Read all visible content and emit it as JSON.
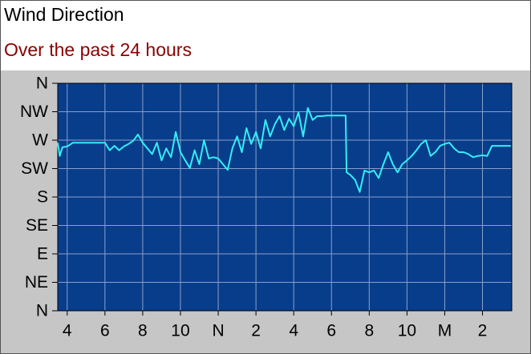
{
  "chart_data": {
    "type": "line",
    "title": "Wind Direction",
    "subtitle": "Over the past 24 hours",
    "x": [
      3.5,
      3.6,
      3.75,
      4,
      4.3,
      4.5,
      5,
      5.5,
      6,
      6.25,
      6.5,
      6.75,
      7,
      7.25,
      7.5,
      7.75,
      8,
      8.25,
      8.5,
      8.75,
      9,
      9.25,
      9.5,
      9.75,
      10,
      10.25,
      10.5,
      10.75,
      11,
      11.25,
      11.5,
      11.75,
      12,
      12.25,
      12.5,
      12.75,
      13,
      13.25,
      13.5,
      13.75,
      14,
      14.25,
      14.5,
      14.75,
      15,
      15.25,
      15.5,
      15.75,
      16,
      16.25,
      16.5,
      16.75,
      17,
      17.25,
      17.5,
      17.75,
      18.25,
      18.75,
      18.8,
      19,
      19.25,
      19.5,
      19.75,
      20,
      20.25,
      20.5,
      20.75,
      21,
      21.25,
      21.5,
      21.75,
      22,
      22.25,
      22.5,
      22.75,
      23,
      23.25,
      23.5,
      23.75,
      24,
      24.25,
      24.5,
      24.75,
      25,
      25.25,
      25.5,
      25.75,
      26,
      26.25,
      26.5,
      27,
      27.5
    ],
    "series": [
      {
        "name": "Wind Direction",
        "color": "#33eef5",
        "values": [
          266,
          245,
          259,
          260,
          266,
          266,
          266,
          266,
          266,
          254,
          261,
          254,
          260,
          264,
          269,
          279,
          266,
          257,
          248,
          266,
          238,
          257,
          243,
          283,
          251,
          238,
          226,
          254,
          232,
          270,
          241,
          243,
          241,
          232,
          223,
          257,
          276,
          251,
          289,
          264,
          283,
          257,
          302,
          276,
          295,
          308,
          286,
          304,
          292,
          314,
          276,
          321,
          302,
          308,
          308,
          309,
          309,
          309,
          219,
          215,
          207,
          188,
          222,
          219,
          222,
          210,
          232,
          251,
          232,
          219,
          232,
          238,
          245,
          254,
          264,
          270,
          245,
          251,
          261,
          264,
          266,
          257,
          251,
          251,
          248,
          243,
          245,
          246,
          245,
          261,
          261,
          261
        ]
      }
    ],
    "xlim": [
      3.5,
      27.55
    ],
    "xticks": [
      {
        "value": 4,
        "label": "4"
      },
      {
        "value": 6,
        "label": "6"
      },
      {
        "value": 8,
        "label": "8"
      },
      {
        "value": 10,
        "label": "10"
      },
      {
        "value": 12,
        "label": "N"
      },
      {
        "value": 14,
        "label": "2"
      },
      {
        "value": 16,
        "label": "4"
      },
      {
        "value": 18,
        "label": "6"
      },
      {
        "value": 20,
        "label": "8"
      },
      {
        "value": 22,
        "label": "10"
      },
      {
        "value": 24,
        "label": "M"
      },
      {
        "value": 26,
        "label": "2"
      }
    ],
    "ylim": [
      0,
      360
    ],
    "yticks": [
      {
        "value": 0,
        "label": "N"
      },
      {
        "value": 45,
        "label": "NE"
      },
      {
        "value": 90,
        "label": "E"
      },
      {
        "value": 135,
        "label": "SE"
      },
      {
        "value": 180,
        "label": "S"
      },
      {
        "value": 225,
        "label": "SW"
      },
      {
        "value": 270,
        "label": "W"
      },
      {
        "value": 315,
        "label": "NW"
      },
      {
        "value": 360,
        "label": "N"
      }
    ],
    "grid": true
  }
}
